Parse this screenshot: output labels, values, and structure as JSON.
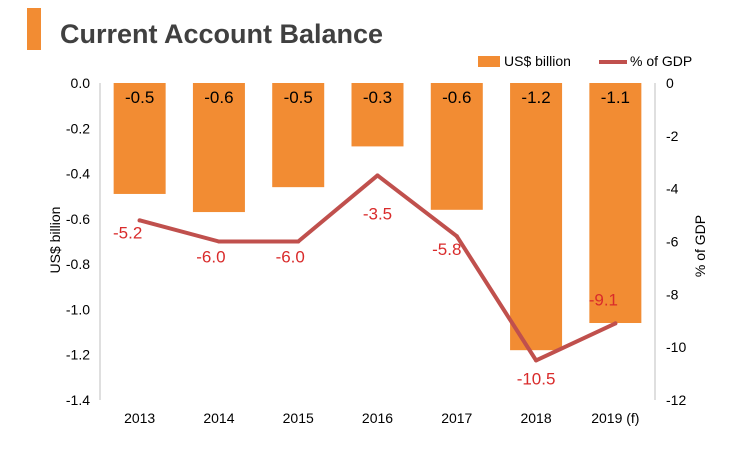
{
  "colors": {
    "accent": "#f28c33",
    "bar": "#f28c33",
    "line": "#c0504d",
    "line_label": "#d92b2b",
    "axis": "#bfbfbf",
    "title": "#404040"
  },
  "chart_data": {
    "type": "bar",
    "title": "Current Account Balance",
    "categories": [
      "2013",
      "2014",
      "2015",
      "2016",
      "2017",
      "2018",
      "2019 (f)"
    ],
    "series": [
      {
        "name": "US$ billion",
        "type": "bar",
        "axis": "left",
        "values": [
          -0.49,
          -0.57,
          -0.46,
          -0.28,
          -0.56,
          -1.18,
          -1.06
        ],
        "labels": [
          "-0.5",
          "-0.6",
          "-0.5",
          "-0.3",
          "-0.6",
          "-1.2",
          "-1.1"
        ]
      },
      {
        "name": "% of GDP",
        "type": "line",
        "axis": "right",
        "values": [
          -5.2,
          -6.0,
          -6.0,
          -3.5,
          -5.8,
          -10.5,
          -9.1
        ],
        "labels": [
          "-5.2",
          "-6.0",
          "-6.0",
          "-3.5",
          "-5.8",
          "-10.5",
          "-9.1"
        ]
      }
    ],
    "ylabel": "US$ billion",
    "ylabel_right": "% of GDP",
    "ylim": [
      -1.4,
      0.0
    ],
    "ylim_right": [
      -12,
      0
    ],
    "yticks": [
      "0.0",
      "-0.2",
      "-0.4",
      "-0.6",
      "-0.8",
      "-1.0",
      "-1.2",
      "-1.4"
    ],
    "yticks_right": [
      "0",
      "-2",
      "-4",
      "-6",
      "-8",
      "-10",
      "-12"
    ],
    "grid": false,
    "legend": "top-right"
  }
}
